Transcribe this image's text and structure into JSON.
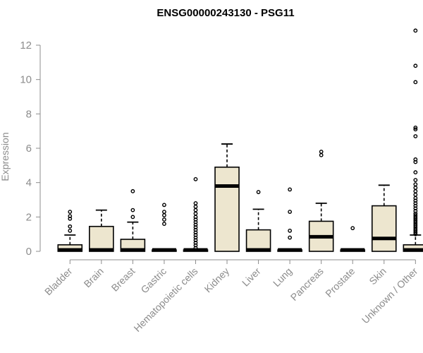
{
  "chart_data": {
    "type": "box",
    "title": "ENSG00000243130 - PSG11",
    "xlabel": "",
    "ylabel": "Expression",
    "ylim": [
      0,
      13
    ],
    "yticks": [
      0,
      2,
      4,
      6,
      8,
      10,
      12
    ],
    "grid": false,
    "box_color": "#ede6cf",
    "categories": [
      "Bladder",
      "Brain",
      "Breast",
      "Gastric",
      "Hematopoietic cells",
      "Kidney",
      "Liver",
      "Lung",
      "Pancreas",
      "Prostate",
      "Skin",
      "Unknown / Other"
    ],
    "boxes": [
      {
        "min": 0,
        "q1": 0,
        "median": 0.05,
        "q3": 0.38,
        "max": 0.95,
        "outliers": [
          1.2,
          1.45,
          1.9,
          2.05,
          2.3
        ]
      },
      {
        "min": 0,
        "q1": 0,
        "median": 0.05,
        "q3": 1.45,
        "max": 2.4,
        "outliers": []
      },
      {
        "min": 0,
        "q1": 0,
        "median": 0.05,
        "q3": 0.7,
        "max": 1.7,
        "outliers": [
          2.0,
          2.4,
          3.5
        ]
      },
      {
        "min": 0,
        "q1": 0,
        "median": 0.05,
        "q3": 0.05,
        "max": 0.05,
        "outliers": [
          1.6,
          1.85,
          2.1,
          2.3,
          2.7
        ]
      },
      {
        "min": 0,
        "q1": 0,
        "median": 0.05,
        "q3": 0.05,
        "max": 0.05,
        "outliers": [
          0.2,
          0.35,
          0.5,
          0.65,
          0.8,
          0.95,
          1.1,
          1.25,
          1.4,
          1.55,
          1.7,
          1.85,
          2.0,
          2.2,
          2.4,
          2.6,
          2.8,
          4.2
        ]
      },
      {
        "min": 0,
        "q1": 0,
        "median": 3.8,
        "q3": 4.9,
        "max": 6.25,
        "outliers": []
      },
      {
        "min": 0,
        "q1": 0,
        "median": 0.05,
        "q3": 1.25,
        "max": 2.45,
        "outliers": [
          3.45
        ]
      },
      {
        "min": 0,
        "q1": 0,
        "median": 0.05,
        "q3": 0.05,
        "max": 0.05,
        "outliers": [
          0.8,
          1.2,
          2.3,
          3.6
        ]
      },
      {
        "min": 0,
        "q1": 0,
        "median": 0.85,
        "q3": 1.75,
        "max": 2.8,
        "outliers": [
          5.6,
          5.8
        ]
      },
      {
        "min": 0,
        "q1": 0,
        "median": 0.05,
        "q3": 0.05,
        "max": 0.05,
        "outliers": [
          1.35
        ]
      },
      {
        "min": 0,
        "q1": 0,
        "median": 0.75,
        "q3": 2.65,
        "max": 3.85,
        "outliers": []
      },
      {
        "min": 0,
        "q1": 0,
        "median": 0.05,
        "q3": 0.38,
        "max": 0.95,
        "outliers": [
          1.0,
          1.1,
          1.2,
          1.3,
          1.4,
          1.5,
          1.6,
          1.7,
          1.8,
          1.9,
          2.0,
          2.1,
          2.2,
          2.35,
          2.5,
          2.65,
          2.8,
          2.95,
          3.1,
          3.3,
          3.5,
          3.7,
          3.9,
          4.15,
          4.6,
          5.2,
          5.35,
          6.7,
          7.1,
          7.2,
          9.85,
          10.8,
          12.85
        ]
      }
    ]
  }
}
